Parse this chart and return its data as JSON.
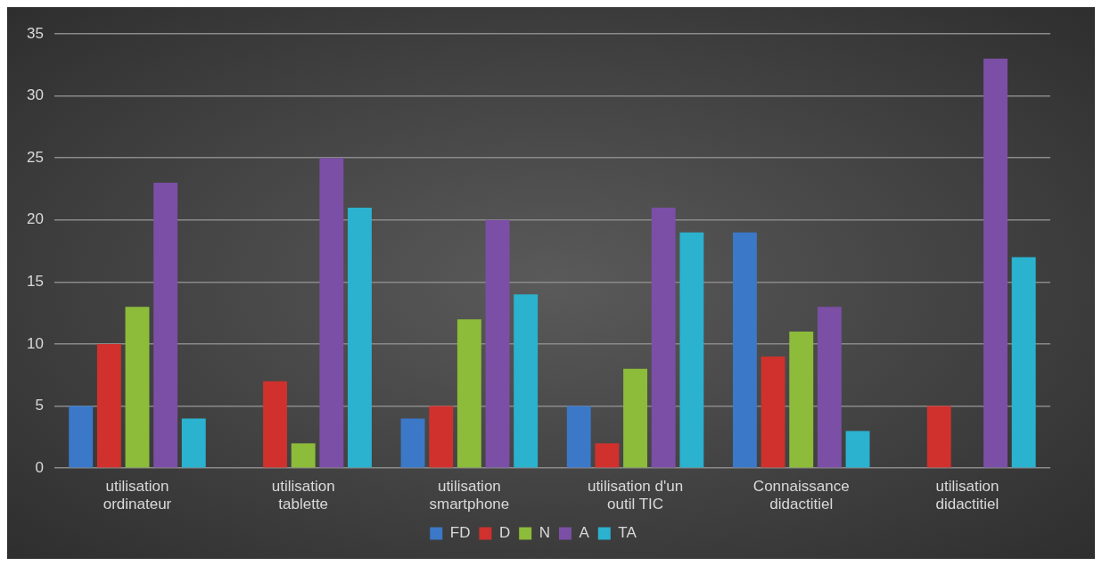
{
  "chart_data": {
    "type": "bar",
    "categories": [
      "utilisation ordinateur",
      "utilisation tablette",
      "utilisation smartphone",
      "utilisation d'un outil TIC",
      "Connaissance didactitiel",
      "utilisation didactitiel"
    ],
    "series": [
      {
        "name": "FD",
        "color": "#3b78c8",
        "values": [
          5,
          0,
          4,
          5,
          19,
          0
        ]
      },
      {
        "name": "D",
        "color": "#d0312d",
        "values": [
          10,
          7,
          5,
          2,
          9,
          5
        ]
      },
      {
        "name": "N",
        "color": "#8dbb3a",
        "values": [
          13,
          2,
          12,
          8,
          11,
          0
        ]
      },
      {
        "name": "A",
        "color": "#7b4fa6",
        "values": [
          23,
          25,
          20,
          21,
          13,
          33
        ]
      },
      {
        "name": "TA",
        "color": "#2ab2cf",
        "values": [
          4,
          21,
          14,
          19,
          3,
          17
        ]
      }
    ],
    "ylim": [
      0,
      35
    ],
    "yticks": [
      0,
      5,
      10,
      15,
      20,
      25,
      30,
      35
    ],
    "grid": "y",
    "legend": "bottom"
  }
}
